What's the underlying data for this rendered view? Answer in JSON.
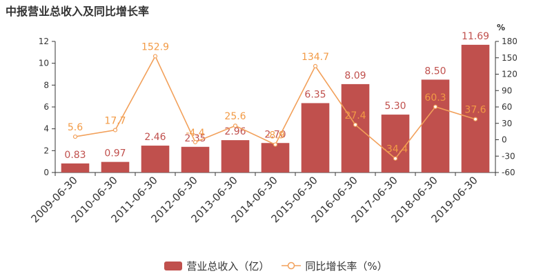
{
  "colors": {
    "bar": "#C0504D",
    "line": "#F2A05A",
    "bar_label": "#C0504D",
    "line_label": "#F29A45",
    "axis": "#333333",
    "grid": "#E6E6E6"
  },
  "chart_data": {
    "type": "bar",
    "title": "中报营业总收入及同比增长率",
    "categories": [
      "2009-06-30",
      "2010-06-30",
      "2011-06-30",
      "2012-06-30",
      "2013-06-30",
      "2014-06-30",
      "2015-06-30",
      "2016-06-30",
      "2017-06-30",
      "2018-06-30",
      "2019-06-30"
    ],
    "series": [
      {
        "name": "营业总收入（亿）",
        "type": "bar",
        "axis": "left",
        "values": [
          0.83,
          0.97,
          2.46,
          2.35,
          2.96,
          2.7,
          6.35,
          8.09,
          5.3,
          8.5,
          11.69
        ],
        "labels": [
          "0.83",
          "0.97",
          "2.46",
          "2.35",
          "2.96",
          "2.70",
          "6.35",
          "8.09",
          "5.30",
          "8.50",
          "11.69"
        ]
      },
      {
        "name": "同比增长率（%）",
        "type": "line",
        "axis": "right",
        "values": [
          5.6,
          17.7,
          152.9,
          -4.4,
          25.6,
          -8.9,
          134.7,
          27.4,
          -34.4,
          60.3,
          37.6
        ],
        "labels": [
          "5.6",
          "17.7",
          "152.9",
          "-4.4",
          "25.6",
          "-8.9",
          "134.7",
          "27.4",
          "-34.4",
          "60.3",
          "37.6"
        ]
      }
    ],
    "y_left": {
      "min": 0,
      "max": 12,
      "ticks": [
        "0",
        "2",
        "4",
        "6",
        "8",
        "10",
        "12"
      ]
    },
    "y_right": {
      "min": -60,
      "max": 180,
      "unit": "%",
      "ticks": [
        "-60",
        "-30",
        "0",
        "30",
        "60",
        "90",
        "120",
        "150",
        "180"
      ]
    },
    "grid": false,
    "legend_position": "bottom"
  }
}
